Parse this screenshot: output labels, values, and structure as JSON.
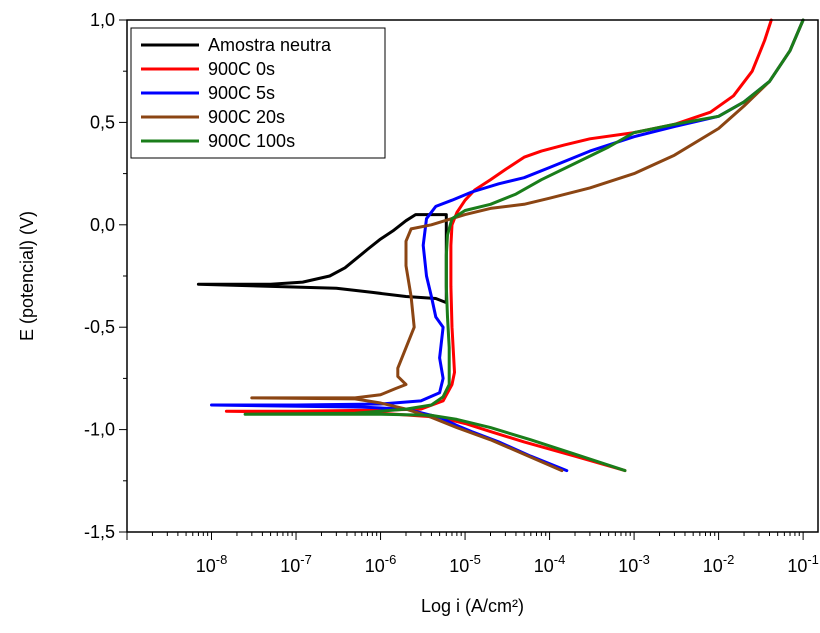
{
  "chart_data": {
    "type": "line",
    "xlabel": "Log i (A/cm²)",
    "ylabel": "E (potencial) (V)",
    "x_scale": "log",
    "xlim": [
      1e-09,
      0.15
    ],
    "ylim": [
      -1.5,
      1.0
    ],
    "x_ticks": [
      {
        "value": 1e-08,
        "base": "10",
        "exp": "-8"
      },
      {
        "value": 1e-07,
        "base": "10",
        "exp": "-7"
      },
      {
        "value": 1e-06,
        "base": "10",
        "exp": "-6"
      },
      {
        "value": 1e-05,
        "base": "10",
        "exp": "-5"
      },
      {
        "value": 0.0001,
        "base": "10",
        "exp": "-4"
      },
      {
        "value": 0.001,
        "base": "10",
        "exp": "-3"
      },
      {
        "value": 0.01,
        "base": "10",
        "exp": "-2"
      },
      {
        "value": 0.1,
        "base": "10",
        "exp": "-1"
      }
    ],
    "y_ticks": [
      {
        "value": 1.0,
        "label": "1,0"
      },
      {
        "value": 0.5,
        "label": "0,5"
      },
      {
        "value": 0.0,
        "label": "0,0"
      },
      {
        "value": -0.5,
        "label": "-0,5"
      },
      {
        "value": -1.0,
        "label": "-1,0"
      },
      {
        "value": -1.5,
        "label": "-1,5"
      }
    ],
    "grid": false,
    "legend_position": "top-left",
    "series": [
      {
        "name": "Amostra neutra",
        "color": "#000000",
        "points": [
          [
            7e-09,
            -0.29
          ],
          [
            5e-08,
            -0.29
          ],
          [
            1.2e-07,
            -0.28
          ],
          [
            2.5e-07,
            -0.25
          ],
          [
            3.8e-07,
            -0.21
          ],
          [
            5e-07,
            -0.17
          ],
          [
            7e-07,
            -0.12
          ],
          [
            1e-06,
            -0.07
          ],
          [
            1.4e-06,
            -0.03
          ],
          [
            2e-06,
            0.02
          ],
          [
            2.6e-06,
            0.05
          ],
          [
            4e-06,
            0.05
          ],
          [
            6e-06,
            0.05
          ],
          [
            6e-06,
            -0.38
          ],
          [
            4.5e-06,
            -0.36
          ],
          [
            2e-06,
            -0.35
          ],
          [
            8e-07,
            -0.33
          ],
          [
            3e-07,
            -0.31
          ],
          [
            7e-09,
            -0.29
          ]
        ]
      },
      {
        "name": "900C 0s",
        "color": "#ff0000",
        "points": [
          [
            0.00078,
            -1.2
          ],
          [
            0.0002,
            -1.13
          ],
          [
            5e-05,
            -1.06
          ],
          [
            2e-05,
            -1.01
          ],
          [
            1e-05,
            -0.97
          ],
          [
            5e-06,
            -0.94
          ],
          [
            1e-06,
            -0.92
          ],
          [
            1.5e-08,
            -0.91
          ],
          [
            1e-07,
            -0.91
          ],
          [
            1e-06,
            -0.905
          ],
          [
            3e-06,
            -0.9
          ],
          [
            5.5e-06,
            -0.86
          ],
          [
            7e-06,
            -0.78
          ],
          [
            7.5e-06,
            -0.72
          ],
          [
            7e-06,
            -0.5
          ],
          [
            6.8e-06,
            -0.3
          ],
          [
            6.8e-06,
            -0.1
          ],
          [
            7e-06,
            0.0
          ],
          [
            8e-06,
            0.06
          ],
          [
            1e-05,
            0.12
          ],
          [
            1.3e-05,
            0.17
          ],
          [
            2e-05,
            0.22
          ],
          [
            3e-05,
            0.27
          ],
          [
            5e-05,
            0.33
          ],
          [
            8e-05,
            0.36
          ],
          [
            0.00015,
            0.39
          ],
          [
            0.0003,
            0.42
          ],
          [
            0.001,
            0.45
          ],
          [
            0.003,
            0.49
          ],
          [
            0.008,
            0.55
          ],
          [
            0.015,
            0.63
          ],
          [
            0.025,
            0.75
          ],
          [
            0.035,
            0.9
          ],
          [
            0.042,
            1.0
          ]
        ]
      },
      {
        "name": "900C 5s",
        "color": "#0000ff",
        "points": [
          [
            0.00016,
            -1.2
          ],
          [
            6e-05,
            -1.13
          ],
          [
            2.5e-05,
            -1.06
          ],
          [
            1.2e-05,
            -1.01
          ],
          [
            8e-06,
            -0.98
          ],
          [
            5e-06,
            -0.94
          ],
          [
            2e-06,
            -0.9
          ],
          [
            6e-07,
            -0.89
          ],
          [
            1e-08,
            -0.88
          ],
          [
            1e-07,
            -0.88
          ],
          [
            1e-06,
            -0.875
          ],
          [
            3e-06,
            -0.86
          ],
          [
            5e-06,
            -0.82
          ],
          [
            5.5e-06,
            -0.75
          ],
          [
            5e-06,
            -0.65
          ],
          [
            5.5e-06,
            -0.5
          ],
          [
            4.5e-06,
            -0.45
          ],
          [
            4e-06,
            -0.35
          ],
          [
            3.5e-06,
            -0.25
          ],
          [
            3.2e-06,
            -0.1
          ],
          [
            3.5e-06,
            0.03
          ],
          [
            4.5e-06,
            0.09
          ],
          [
            7e-06,
            0.12
          ],
          [
            1.2e-05,
            0.16
          ],
          [
            2.5e-05,
            0.2
          ],
          [
            5e-05,
            0.23
          ],
          [
            0.0001,
            0.28
          ],
          [
            0.0003,
            0.36
          ],
          [
            0.001,
            0.43
          ],
          [
            0.003,
            0.48
          ],
          [
            0.01,
            0.53
          ],
          [
            0.02,
            0.6
          ],
          [
            0.04,
            0.7
          ],
          [
            0.07,
            0.85
          ],
          [
            0.1,
            1.0
          ]
        ]
      },
      {
        "name": "900C 20s",
        "color": "#8b4513",
        "points": [
          [
            0.00014,
            -1.2
          ],
          [
            5e-05,
            -1.12
          ],
          [
            2e-05,
            -1.05
          ],
          [
            8e-06,
            -0.99
          ],
          [
            4e-06,
            -0.94
          ],
          [
            2e-06,
            -0.9
          ],
          [
            1e-06,
            -0.87
          ],
          [
            5e-07,
            -0.85
          ],
          [
            3e-08,
            -0.845
          ],
          [
            5e-07,
            -0.845
          ],
          [
            1e-06,
            -0.83
          ],
          [
            1.5e-06,
            -0.8
          ],
          [
            2e-06,
            -0.78
          ],
          [
            1.6e-06,
            -0.74
          ],
          [
            1.6e-06,
            -0.7
          ],
          [
            2e-06,
            -0.6
          ],
          [
            2.5e-06,
            -0.5
          ],
          [
            2.3e-06,
            -0.35
          ],
          [
            2e-06,
            -0.2
          ],
          [
            2e-06,
            -0.08
          ],
          [
            2.3e-06,
            -0.02
          ],
          [
            4e-06,
            0.0
          ],
          [
            1e-05,
            0.05
          ],
          [
            2e-05,
            0.08
          ],
          [
            5e-05,
            0.1
          ],
          [
            0.0001,
            0.13
          ],
          [
            0.0003,
            0.18
          ],
          [
            0.001,
            0.25
          ],
          [
            0.003,
            0.34
          ],
          [
            0.01,
            0.47
          ],
          [
            0.02,
            0.58
          ],
          [
            0.04,
            0.7
          ],
          [
            0.07,
            0.85
          ],
          [
            0.1,
            1.0
          ]
        ]
      },
      {
        "name": "900C 100s",
        "color": "#1a7d1a",
        "points": [
          [
            0.00078,
            -1.2
          ],
          [
            0.0002,
            -1.12
          ],
          [
            6e-05,
            -1.05
          ],
          [
            2e-05,
            -0.99
          ],
          [
            8e-06,
            -0.95
          ],
          [
            4e-06,
            -0.93
          ],
          [
            1e-06,
            -0.925
          ],
          [
            2.5e-08,
            -0.925
          ],
          [
            5e-07,
            -0.92
          ],
          [
            2e-06,
            -0.9
          ],
          [
            4e-06,
            -0.88
          ],
          [
            5.5e-06,
            -0.84
          ],
          [
            6.5e-06,
            -0.78
          ],
          [
            6.5e-06,
            -0.6
          ],
          [
            6.2e-06,
            -0.45
          ],
          [
            6e-06,
            -0.3
          ],
          [
            6e-06,
            -0.15
          ],
          [
            6.2e-06,
            -0.05
          ],
          [
            7e-06,
            0.03
          ],
          [
            1e-05,
            0.07
          ],
          [
            2e-05,
            0.1
          ],
          [
            4e-05,
            0.15
          ],
          [
            8e-05,
            0.22
          ],
          [
            0.0002,
            0.3
          ],
          [
            0.0005,
            0.38
          ],
          [
            0.001,
            0.45
          ],
          [
            0.003,
            0.49
          ],
          [
            0.01,
            0.53
          ],
          [
            0.02,
            0.6
          ],
          [
            0.04,
            0.7
          ],
          [
            0.07,
            0.85
          ],
          [
            0.1,
            1.0
          ]
        ]
      }
    ]
  }
}
